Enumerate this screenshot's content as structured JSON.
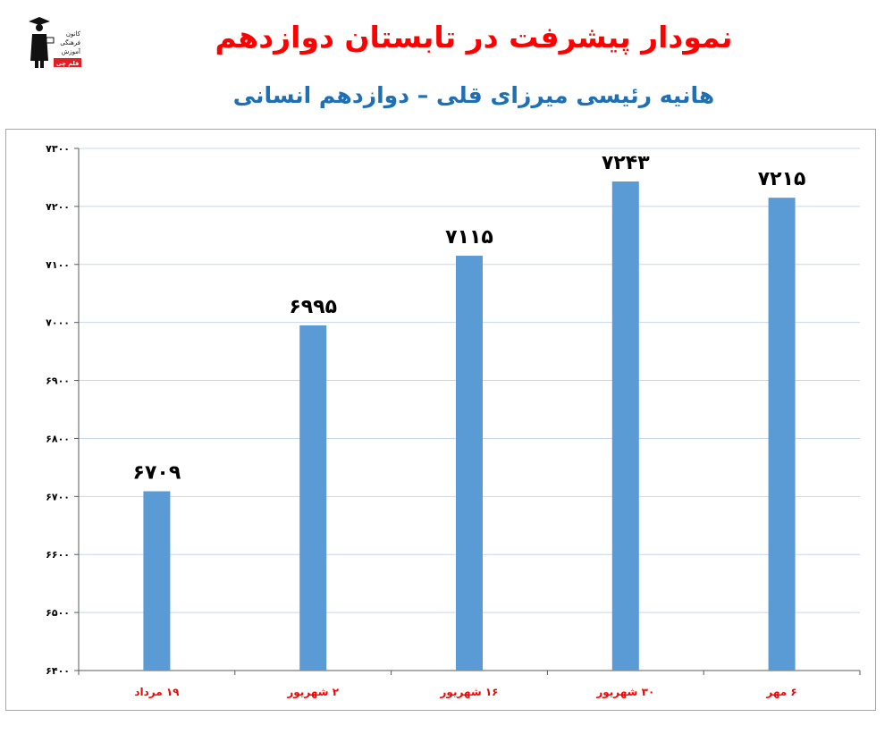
{
  "header": {
    "title": "نمودار پیشرفت در تابستان دوازدهم",
    "subtitle": "هانیه رئیسی میرزای قلی – دوازدهم انسانی"
  },
  "logo": {
    "icon": "graduate-figure-icon",
    "lines": [
      "کانون",
      "فرهنگی",
      "آموزش"
    ],
    "badge": "قلم چی"
  },
  "colors": {
    "bar": "#5b9bd5",
    "title": "#ff0000",
    "subtitle": "#1f6fb5",
    "category_label": "#ff0000",
    "grid": "#c7d7eb"
  },
  "chart_data": {
    "type": "bar",
    "categories": [
      "۱۹ مرداد",
      "۲ شهریور",
      "۱۶ شهریور",
      "۳۰ شهریور",
      "۶ مهر"
    ],
    "values": [
      6709,
      6995,
      7115,
      7243,
      7215
    ],
    "data_labels": [
      "۶۷۰۹",
      "۶۹۹۵",
      "۷۱۱۵",
      "۷۲۴۳",
      "۷۲۱۵"
    ],
    "ylim": [
      6400,
      7300
    ],
    "yticks": [
      6400,
      6500,
      6600,
      6700,
      6800,
      6900,
      7000,
      7100,
      7200,
      7300
    ],
    "ytick_labels": [
      "۶۴۰۰",
      "۶۵۰۰",
      "۶۶۰۰",
      "۶۷۰۰",
      "۶۸۰۰",
      "۶۹۰۰",
      "۷۰۰۰",
      "۷۱۰۰",
      "۷۲۰۰",
      "۷۳۰۰"
    ],
    "grid": true,
    "legend": "none",
    "xlabel": "",
    "ylabel": ""
  }
}
